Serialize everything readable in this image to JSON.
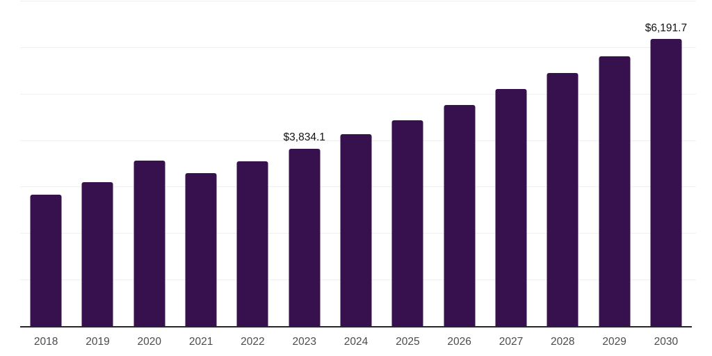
{
  "colors": {
    "background": "#ffffff",
    "bar": "#36114d",
    "axis_line": "#26262b",
    "gridline": "#efeff1",
    "tick_label": "#4c4c50",
    "data_label": "#121212"
  },
  "chart_data": {
    "type": "bar",
    "title": "",
    "xlabel": "",
    "ylabel": "",
    "categories": [
      "2018",
      "2019",
      "2020",
      "2021",
      "2022",
      "2023",
      "2024",
      "2025",
      "2026",
      "2027",
      "2028",
      "2029",
      "2030"
    ],
    "values": [
      2840,
      3110,
      3570,
      3300,
      3560,
      3834.1,
      4140,
      4450,
      4770,
      5120,
      5460,
      5820,
      6191.7
    ],
    "data_labels": [
      "",
      "",
      "",
      "",
      "",
      "$3,834.1",
      "",
      "",
      "",
      "",
      "",
      "",
      "$6,191.7"
    ],
    "ylim": [
      0,
      7000
    ],
    "gridline_interval": 1000,
    "grid": "horizontal",
    "legend": false,
    "y_axis_tick_labels_visible": false
  }
}
